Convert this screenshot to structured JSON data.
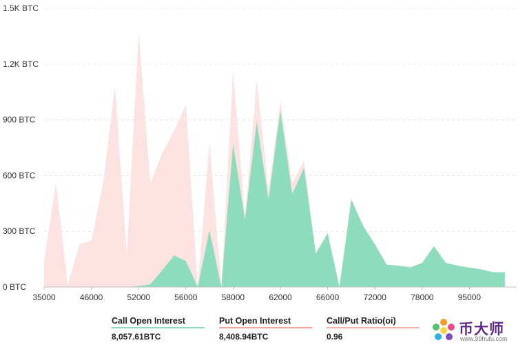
{
  "chart_data": {
    "type": "area",
    "y_tick_labels": [
      "0 BTC",
      "300 BTC",
      "600 BTC",
      "900 BTC",
      "1.2K BTC",
      "1.5K BTC"
    ],
    "y_tick_values": [
      0,
      300,
      600,
      900,
      1200,
      1500
    ],
    "ylim": [
      0,
      1500
    ],
    "x_tick_labels": [
      "35000",
      "46000",
      "52000",
      "56000",
      "58000",
      "62000",
      "66000",
      "72000",
      "78000",
      "95000"
    ],
    "x_tick_index": [
      0,
      4,
      8,
      12,
      16,
      20,
      24,
      28,
      32,
      36
    ],
    "x_index_range": [
      0,
      40
    ],
    "grid": true,
    "series": [
      {
        "name": "Put Open Interest",
        "color": "#fde2e2",
        "points": [
          [
            0,
            140
          ],
          [
            1,
            560
          ],
          [
            2,
            10
          ],
          [
            3,
            230
          ],
          [
            4,
            250
          ],
          [
            5,
            560
          ],
          [
            6,
            1080
          ],
          [
            7,
            170
          ],
          [
            8,
            1370
          ],
          [
            9,
            560
          ],
          [
            10,
            720
          ],
          [
            11,
            840
          ],
          [
            12,
            980
          ],
          [
            13,
            0
          ],
          [
            14,
            780
          ],
          [
            15,
            0
          ],
          [
            16,
            1160
          ],
          [
            17,
            380
          ],
          [
            18,
            1110
          ],
          [
            19,
            520
          ],
          [
            20,
            1000
          ],
          [
            21,
            560
          ],
          [
            22,
            680
          ],
          [
            23,
            180
          ],
          [
            24,
            280
          ],
          [
            25,
            0
          ],
          [
            26,
            480
          ],
          [
            27,
            330
          ],
          [
            28,
            230
          ],
          [
            29,
            120
          ],
          [
            30,
            115
          ],
          [
            31,
            110
          ],
          [
            32,
            130
          ],
          [
            33,
            210
          ],
          [
            34,
            130
          ],
          [
            35,
            110
          ],
          [
            36,
            100
          ],
          [
            37,
            90
          ],
          [
            38,
            80
          ],
          [
            39,
            80
          ]
        ]
      },
      {
        "name": "Call Open Interest",
        "color": "#8ddcbd",
        "points": [
          [
            0,
            0
          ],
          [
            1,
            0
          ],
          [
            2,
            0
          ],
          [
            3,
            0
          ],
          [
            4,
            0
          ],
          [
            5,
            0
          ],
          [
            6,
            0
          ],
          [
            7,
            0
          ],
          [
            8,
            5
          ],
          [
            9,
            15
          ],
          [
            10,
            90
          ],
          [
            11,
            170
          ],
          [
            12,
            140
          ],
          [
            13,
            0
          ],
          [
            14,
            305
          ],
          [
            15,
            0
          ],
          [
            16,
            770
          ],
          [
            17,
            360
          ],
          [
            18,
            890
          ],
          [
            19,
            470
          ],
          [
            20,
            950
          ],
          [
            21,
            500
          ],
          [
            22,
            640
          ],
          [
            23,
            180
          ],
          [
            24,
            290
          ],
          [
            25,
            0
          ],
          [
            26,
            470
          ],
          [
            27,
            330
          ],
          [
            28,
            230
          ],
          [
            29,
            120
          ],
          [
            30,
            115
          ],
          [
            31,
            105
          ],
          [
            32,
            130
          ],
          [
            33,
            220
          ],
          [
            34,
            130
          ],
          [
            35,
            115
          ],
          [
            36,
            105
          ],
          [
            37,
            95
          ],
          [
            38,
            80
          ],
          [
            39,
            80
          ]
        ]
      }
    ]
  },
  "legend": {
    "items": [
      {
        "title": "Call Open Interest",
        "value": "8,057.61BTC",
        "color": "#8ddcbd"
      },
      {
        "title": "Put Open Interest",
        "value": "8,408.94BTC",
        "color": "#f4a3a3"
      },
      {
        "title": "Call/Put Ratio(oi)",
        "value": "0.96",
        "color": "#f0b4b4"
      }
    ]
  },
  "brand": {
    "name": "币大师",
    "url": "www.99hufu.com",
    "logo_icon": "flower-logo-icon"
  }
}
